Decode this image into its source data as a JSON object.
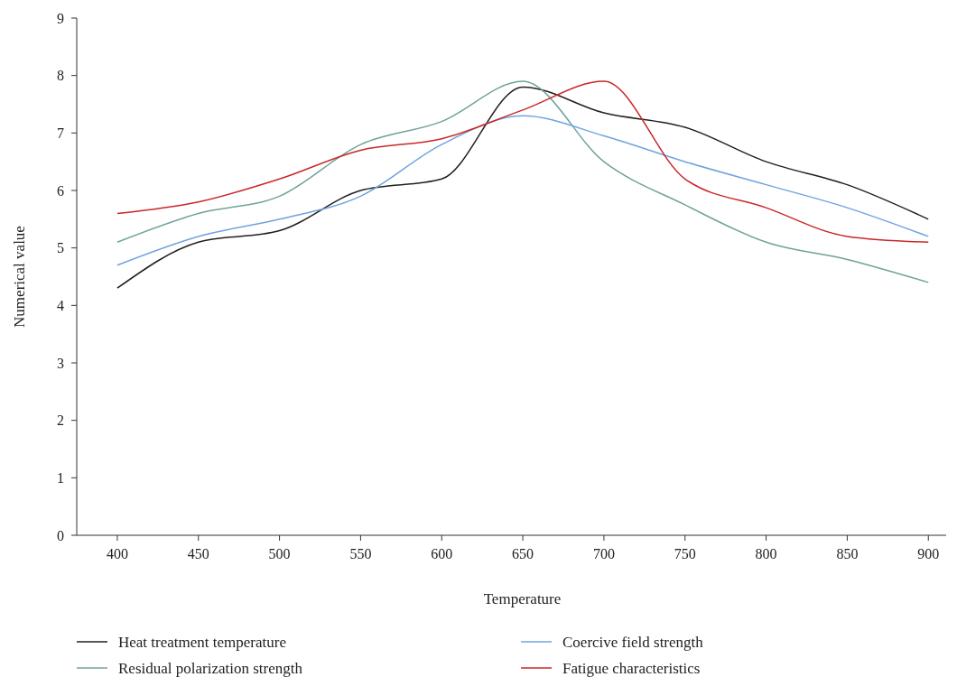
{
  "chart_data": {
    "type": "line",
    "xlabel": "Temperature",
    "ylabel": "Numerical value",
    "x": [
      400,
      450,
      500,
      550,
      600,
      650,
      700,
      750,
      800,
      850,
      900
    ],
    "xlim": [
      375,
      911
    ],
    "xticks": [
      400,
      450,
      500,
      550,
      600,
      650,
      700,
      750,
      800,
      850,
      900
    ],
    "ylim": [
      0,
      9
    ],
    "yticks": [
      0,
      1,
      2,
      3,
      4,
      5,
      6,
      7,
      8,
      9
    ],
    "grid": false,
    "legend": "bottom",
    "marker": "none",
    "line_style": "solid",
    "series": [
      {
        "name": "Heat treatment temperature",
        "color": "#231f20",
        "values": [
          4.3,
          5.1,
          5.3,
          6.0,
          6.2,
          7.8,
          7.35,
          7.1,
          6.5,
          6.1,
          5.5
        ]
      },
      {
        "name": "Residual polarization strength",
        "color": "#6fa39a",
        "values": [
          5.1,
          5.6,
          5.9,
          6.8,
          7.2,
          7.9,
          6.5,
          5.75,
          5.1,
          4.8,
          4.4
        ]
      },
      {
        "name": "Coercive field strength",
        "color": "#6fa3e0",
        "values": [
          4.7,
          5.2,
          5.5,
          5.9,
          6.8,
          7.3,
          6.95,
          6.5,
          6.1,
          5.7,
          5.2
        ]
      },
      {
        "name": "Fatigue characteristics",
        "color": "#c8282a",
        "values": [
          5.6,
          5.8,
          6.2,
          6.7,
          6.9,
          7.4,
          7.9,
          6.2,
          5.7,
          5.2,
          5.1
        ]
      }
    ]
  }
}
